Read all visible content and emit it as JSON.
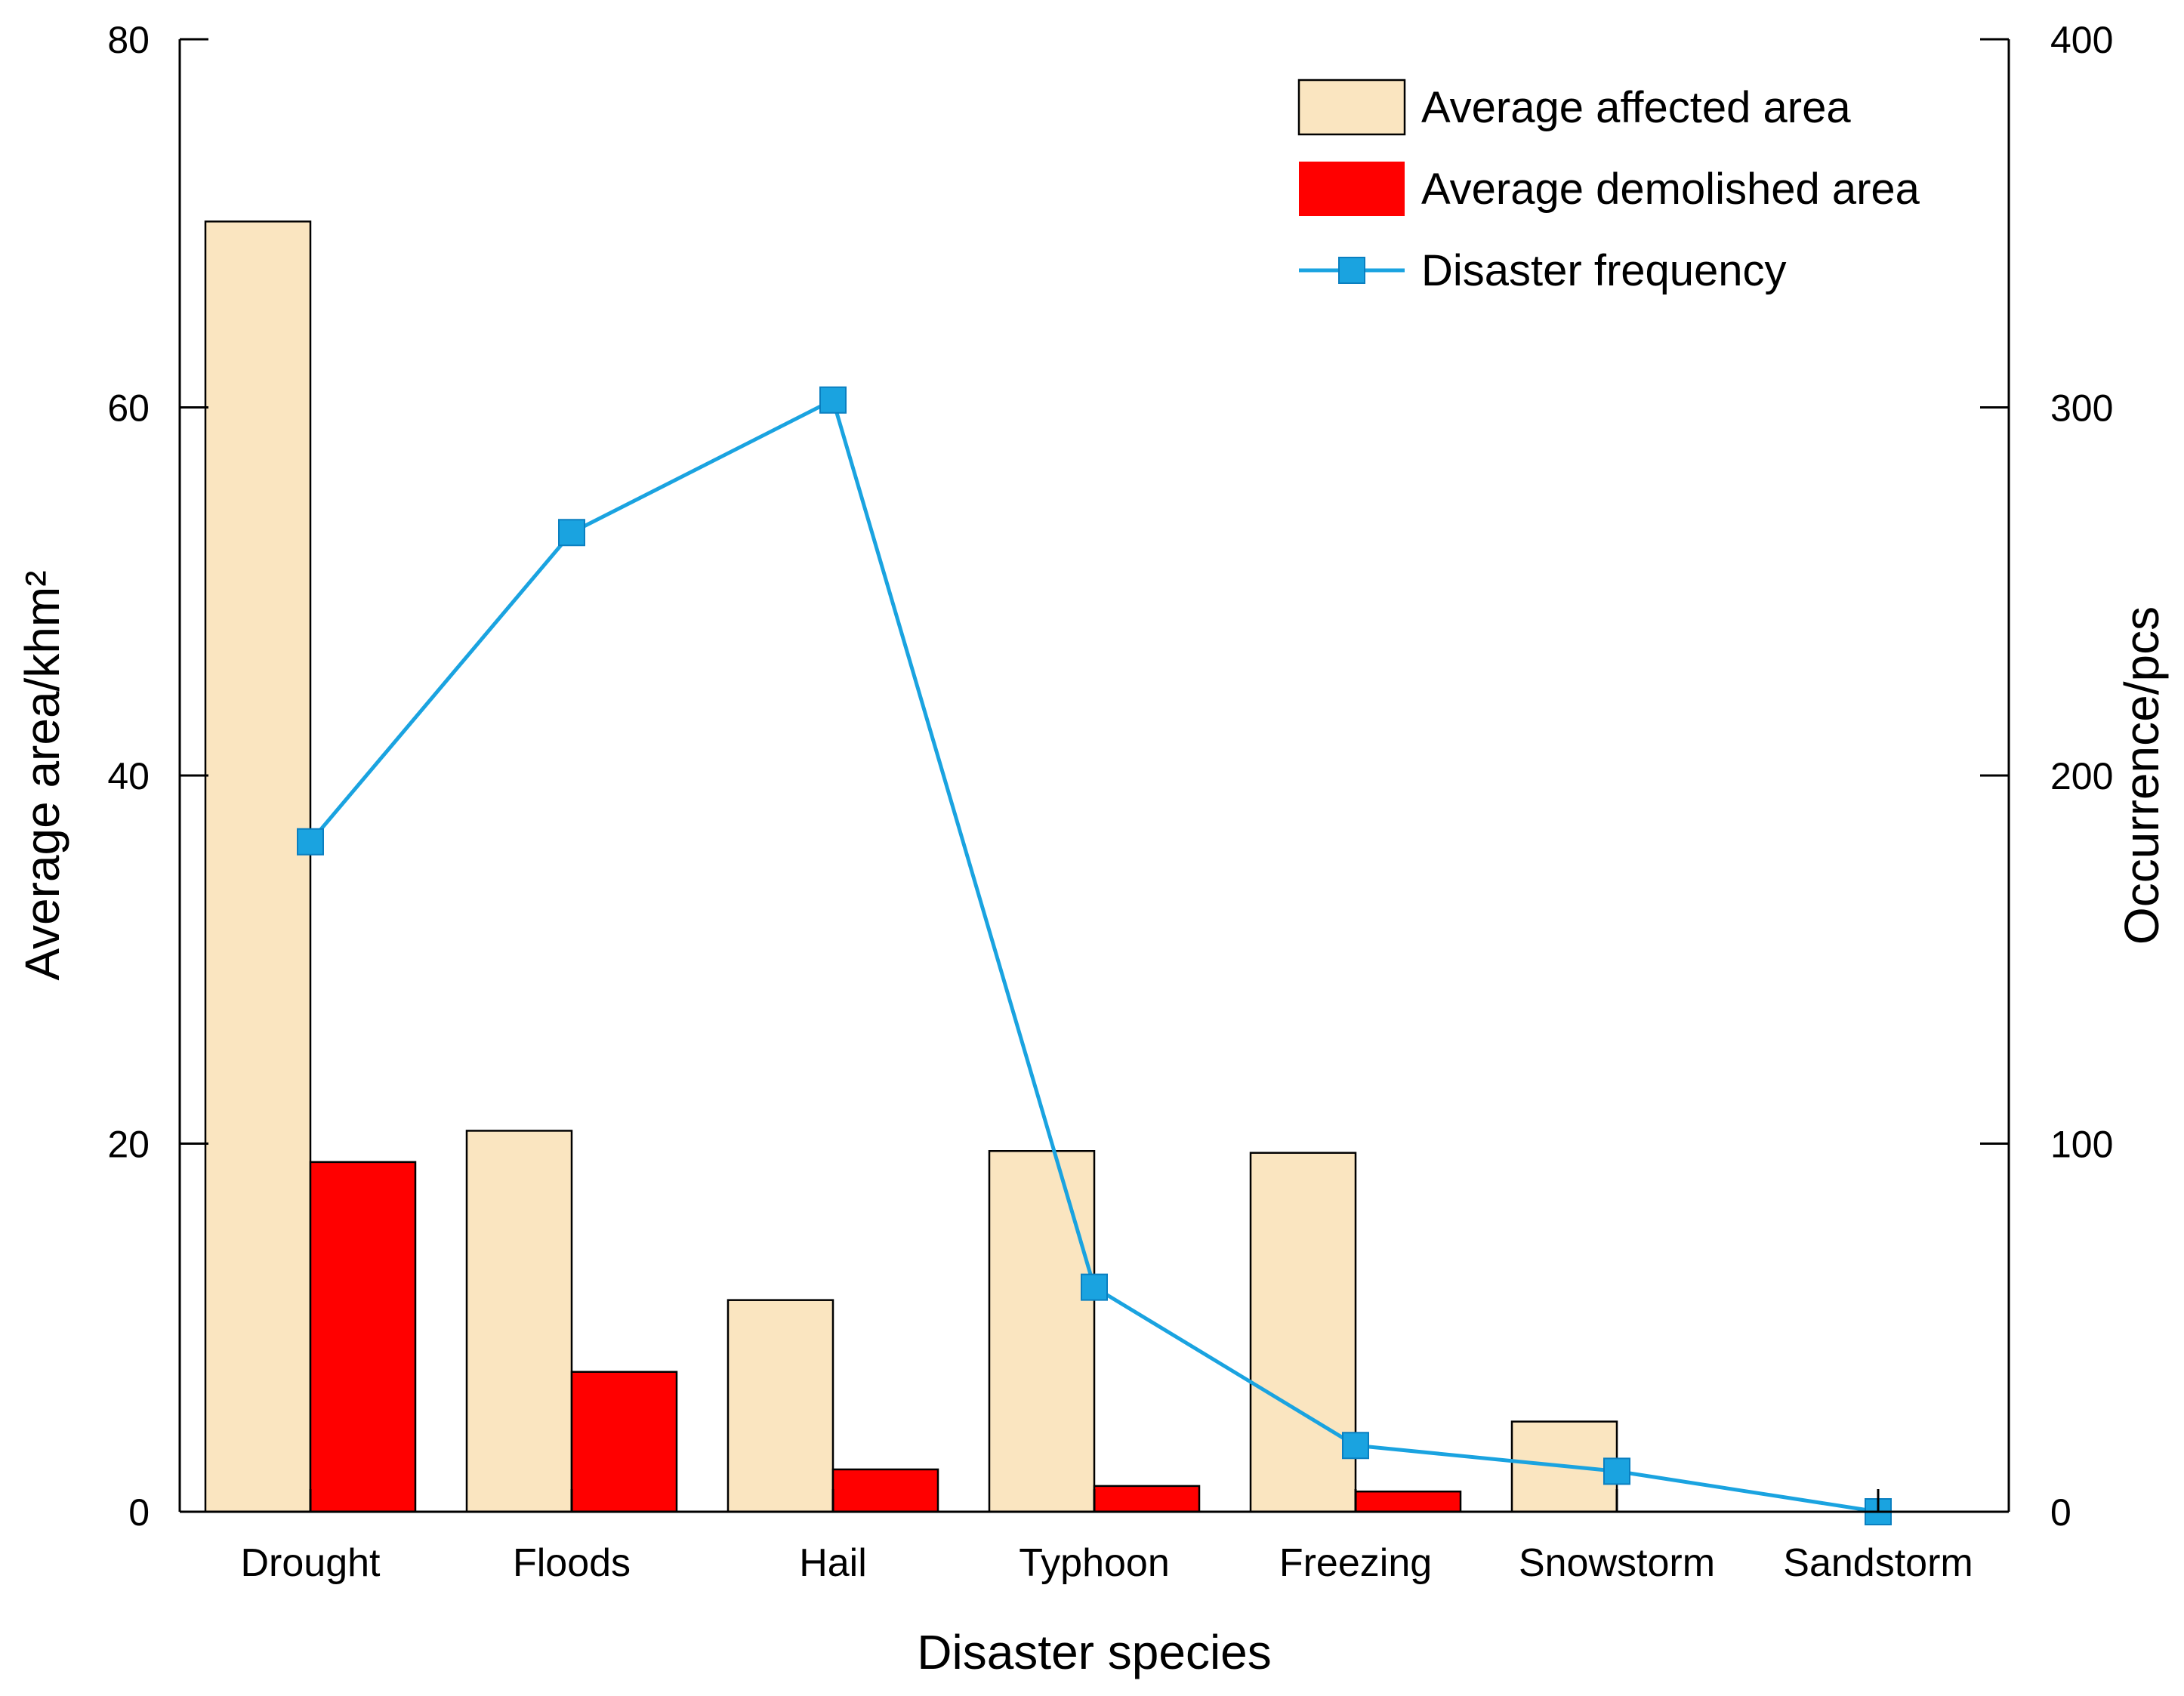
{
  "chart_data": {
    "type": "bar",
    "title": "",
    "xlabel": "Disaster species",
    "ylabel": "Average area/khm²",
    "y2label": "Occurrence/pcs",
    "ylim": [
      0,
      80
    ],
    "y2lim": [
      0,
      400
    ],
    "yticks": [
      "0",
      "20",
      "40",
      "60",
      "80"
    ],
    "y2ticks": [
      "0",
      "100",
      "200",
      "300",
      "400"
    ],
    "categories": [
      "Drought",
      "Floods",
      "Hail",
      "Typhoon",
      "Freezing",
      "Snowstorm",
      "Sandstorm"
    ],
    "series": [
      {
        "name": "Average affected area",
        "type": "bar",
        "axis": "left",
        "color": "#fae5c0",
        "values": [
          70.1,
          20.7,
          11.5,
          19.6,
          19.5,
          4.9,
          0
        ]
      },
      {
        "name": "Average demolished area",
        "type": "bar",
        "axis": "left",
        "color": "#ff0000",
        "values": [
          19.0,
          7.6,
          2.3,
          1.4,
          1.1,
          0,
          0
        ]
      },
      {
        "name": "Disaster frequency",
        "type": "line",
        "axis": "right",
        "color": "#1aa3e0",
        "values": [
          182,
          266,
          302,
          61,
          18,
          11,
          0
        ]
      }
    ],
    "legend_position": "top-right",
    "grid": false
  }
}
